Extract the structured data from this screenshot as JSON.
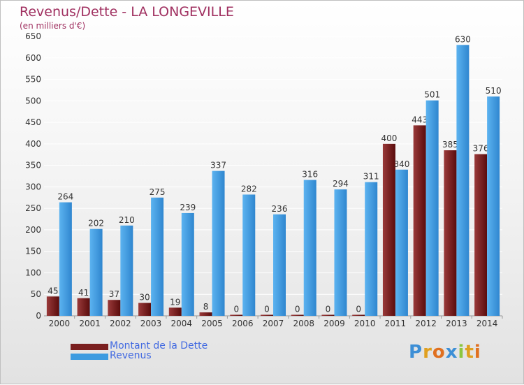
{
  "chart_data": {
    "type": "bar",
    "title": "Revenus/Dette - LA LONGEVILLE",
    "subtitle": "(en milliers d'€)",
    "categories": [
      "2000",
      "2001",
      "2002",
      "2003",
      "2004",
      "2005",
      "2006",
      "2007",
      "2008",
      "2009",
      "2010",
      "2011",
      "2012",
      "2013",
      "2014"
    ],
    "series": [
      {
        "name": "Montant de la Dette",
        "color": "#7a1f1f",
        "values": [
          45,
          41,
          37,
          30,
          19,
          8,
          0,
          0,
          0,
          0,
          0,
          400,
          443,
          385,
          376
        ]
      },
      {
        "name": "Revenus",
        "color": "#3d9be0",
        "values": [
          264,
          202,
          210,
          275,
          239,
          337,
          282,
          236,
          316,
          294,
          311,
          340,
          501,
          630,
          510
        ]
      }
    ],
    "ylim": [
      0,
      650
    ],
    "yticks": [
      0,
      50,
      100,
      150,
      200,
      250,
      300,
      350,
      400,
      450,
      500,
      550,
      600,
      650
    ],
    "grid": true,
    "legend_position": "bottom-left"
  },
  "logo": {
    "letters": [
      {
        "ch": "P",
        "color": "#3d8fd6"
      },
      {
        "ch": "r",
        "color": "#e0a020"
      },
      {
        "ch": "o",
        "color": "#e07020"
      },
      {
        "ch": "x",
        "color": "#3d8fd6"
      },
      {
        "ch": "i",
        "color": "#8cc63f"
      },
      {
        "ch": "t",
        "color": "#e0a020"
      },
      {
        "ch": "i",
        "color": "#e07020"
      }
    ]
  }
}
